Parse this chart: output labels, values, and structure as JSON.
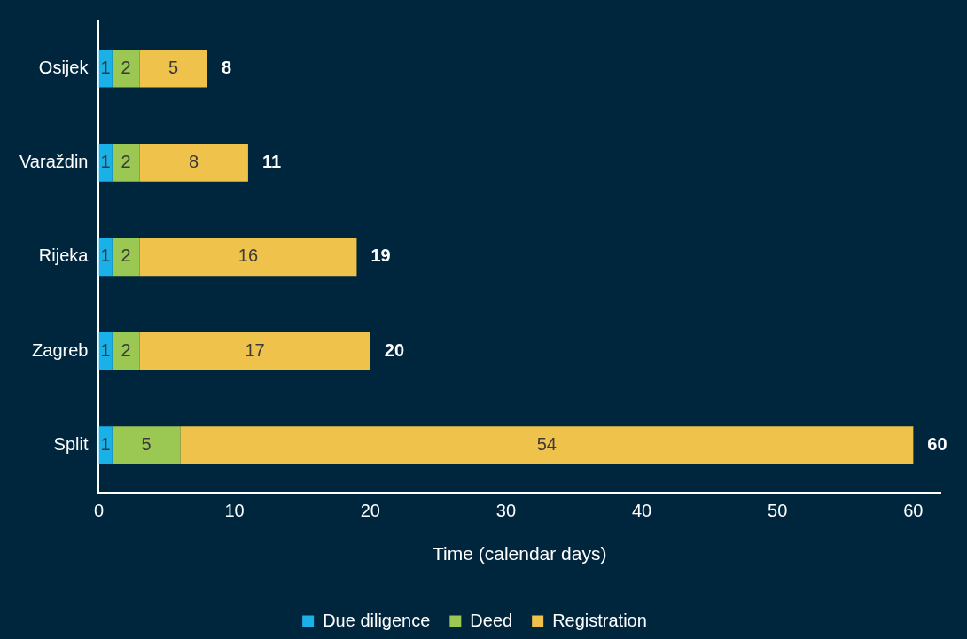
{
  "chart_data": {
    "type": "bar",
    "orientation": "horizontal",
    "stacked": true,
    "xlabel": "Time (calendar days)",
    "categories": [
      "Osijek",
      "Varaždin",
      "Rijeka",
      "Zagreb",
      "Split"
    ],
    "series": [
      {
        "name": "Due diligence",
        "color": "#1ab0e8",
        "values": [
          1,
          1,
          1,
          1,
          1
        ]
      },
      {
        "name": "Deed",
        "color": "#9bc753",
        "values": [
          2,
          2,
          2,
          2,
          5
        ]
      },
      {
        "name": "Registration",
        "color": "#efc24b",
        "values": [
          5,
          8,
          16,
          17,
          54
        ]
      }
    ],
    "totals": [
      "8",
      "11",
      "19",
      "20",
      "60"
    ],
    "data_labels": true,
    "xlim": [
      0,
      62
    ],
    "xticks": [
      0,
      10,
      20,
      30,
      40,
      50,
      60
    ],
    "grid": false,
    "legend": "bottom"
  }
}
